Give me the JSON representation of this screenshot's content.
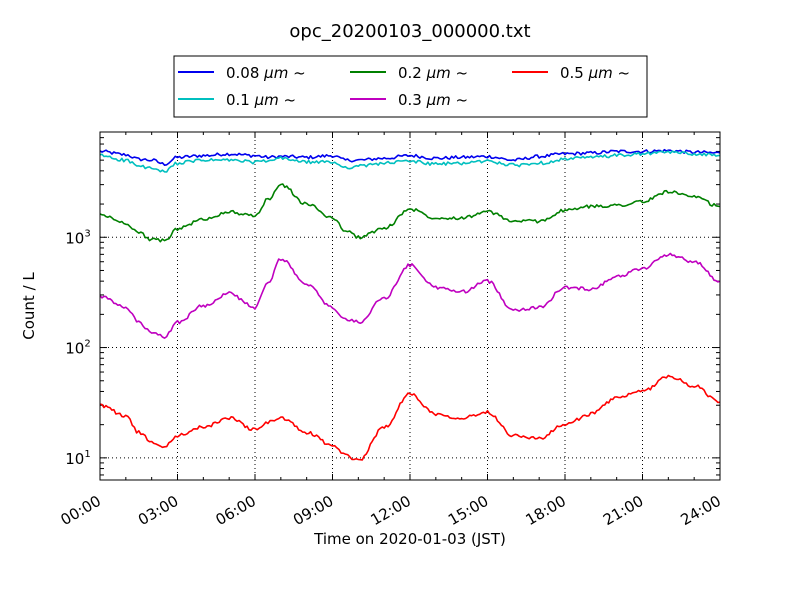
{
  "chart_data": {
    "type": "line",
    "title": "opc_20200103_000000.txt",
    "xlabel": "Time on 2020-01-03 (JST)",
    "ylabel": "Count / L",
    "yscale": "log",
    "xlim": [
      0,
      24
    ],
    "ylim": [
      6.3,
      9000
    ],
    "x_ticks": [
      "00:00",
      "03:00",
      "06:00",
      "09:00",
      "12:00",
      "15:00",
      "18:00",
      "21:00",
      "24:00"
    ],
    "y_ticks": [
      {
        "value": 10,
        "base": "10",
        "exp": "1"
      },
      {
        "value": 100,
        "base": "10",
        "exp": "2"
      },
      {
        "value": 1000,
        "base": "10",
        "exp": "3"
      }
    ],
    "grid": true,
    "legend_position": "top-center (above plot)",
    "x": [
      0,
      1,
      1.5,
      2,
      2.5,
      3,
      4,
      5,
      6,
      6.5,
      7,
      8,
      9,
      9.5,
      10,
      11,
      12,
      13,
      14,
      15,
      16,
      17,
      18,
      19,
      20,
      21,
      22,
      23,
      24
    ],
    "series": [
      {
        "name": "0.08 μm ~",
        "label_main": "0.08 ",
        "label_unit": "μm",
        "label_tail": "  ~",
        "color": "#0000ee",
        "values": [
          6000,
          5600,
          5100,
          5000,
          4600,
          5300,
          5500,
          5700,
          5500,
          5300,
          5400,
          5300,
          5500,
          5000,
          5000,
          5200,
          5500,
          5200,
          5300,
          5400,
          5000,
          5400,
          5700,
          5800,
          6000,
          6000,
          6100,
          5900,
          5800
        ]
      },
      {
        "name": "0.1 μm ~",
        "label_main": "0.1 ",
        "label_unit": "μm",
        "label_tail": "  ~",
        "color": "#00bfbf",
        "values": [
          5500,
          5000,
          4400,
          4200,
          3900,
          4700,
          5000,
          5000,
          4800,
          4900,
          5200,
          4800,
          4800,
          4300,
          4400,
          4700,
          4900,
          4600,
          4700,
          4900,
          4500,
          4700,
          5100,
          5300,
          5500,
          5700,
          5900,
          5700,
          5500
        ]
      },
      {
        "name": "0.2 μm ~",
        "label_main": "0.2 ",
        "label_unit": "μm",
        "label_tail": "  ~",
        "color": "#008000",
        "values": [
          1600,
          1350,
          1100,
          950,
          930,
          1200,
          1450,
          1700,
          1550,
          2200,
          3000,
          2000,
          1500,
          1150,
          1000,
          1200,
          1800,
          1500,
          1500,
          1700,
          1400,
          1400,
          1750,
          1900,
          1950,
          2100,
          2600,
          2300,
          1900
        ]
      },
      {
        "name": "0.3 μm ~",
        "label_main": "0.3 ",
        "label_unit": "μm",
        "label_tail": "  ~",
        "color": "#bf00bf",
        "values": [
          290,
          230,
          170,
          135,
          125,
          170,
          240,
          310,
          230,
          380,
          640,
          370,
          230,
          180,
          170,
          280,
          560,
          350,
          320,
          400,
          220,
          230,
          350,
          340,
          440,
          520,
          700,
          600,
          400
        ]
      },
      {
        "name": "0.5 μm ~",
        "label_main": "0.5 ",
        "label_unit": "μm",
        "label_tail": "  ~",
        "color": "#ff0000",
        "values": [
          30,
          24,
          17,
          14,
          12.5,
          16,
          19,
          23,
          18,
          21,
          23,
          17,
          13,
          10.5,
          9.5,
          19,
          38,
          25,
          23,
          26,
          16,
          15,
          20,
          25,
          35,
          40,
          55,
          45,
          32
        ]
      }
    ]
  }
}
